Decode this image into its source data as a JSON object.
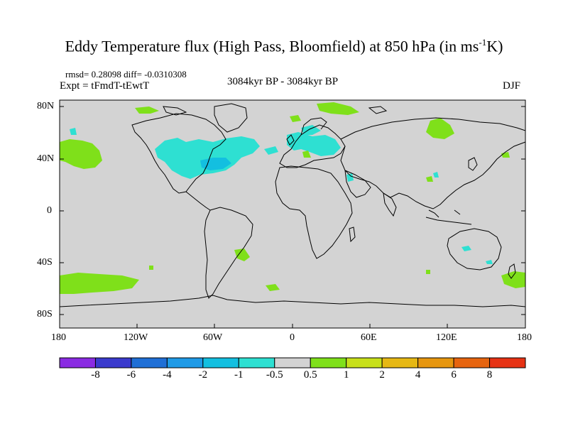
{
  "title": {
    "main": "Eddy Temperature flux (High Pass, Bloomfield) at 850 hPa (in ms",
    "sup": "-1",
    "tail": "K)"
  },
  "stats": {
    "rmsd_diff": "rmsd= 0.28098 diff= -0.0310308",
    "experiment": "Expt = tFmdT-tEwtT",
    "period": "3084kyr BP - 3084kyr BP",
    "season": "DJF"
  },
  "map": {
    "lat_labels": [
      "80N",
      "40N",
      "0",
      "40S",
      "80S"
    ],
    "lon_labels": [
      "180",
      "120W",
      "60W",
      "0",
      "60E",
      "120E",
      "180"
    ],
    "background_color": "#d3d3d3",
    "coastline_color": "#000000"
  },
  "colorbar": {
    "colors": [
      "#8a2be2",
      "#3a3acd",
      "#1f6fd6",
      "#1f9ae6",
      "#13bfe0",
      "#2ee0d2",
      "#d3d3d3",
      "#7fe01a",
      "#c8e01a",
      "#e6b814",
      "#e6960f",
      "#e6640f",
      "#e63214"
    ],
    "labels": [
      "-8",
      "-6",
      "-4",
      "-2",
      "-1",
      "-0.5",
      "0.5",
      "1",
      "2",
      "4",
      "6",
      "8"
    ]
  }
}
